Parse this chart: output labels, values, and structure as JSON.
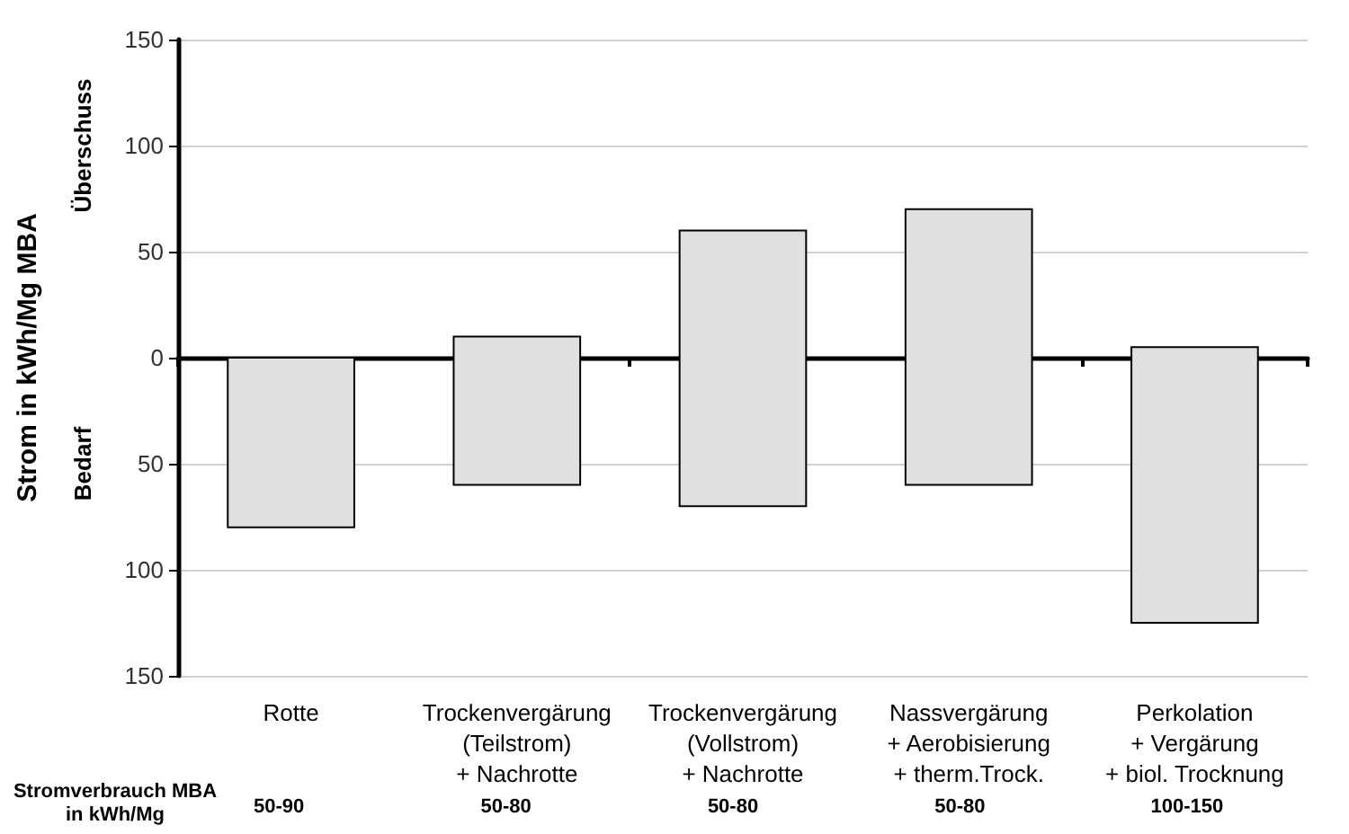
{
  "chart_data": {
    "type": "bar",
    "ylabel": "Strom in kWh/Mg MBA",
    "categories": [
      "Rotte",
      "Trockenvergärung\n(Teilstrom)\n+ Nachrotte",
      "Trockenvergärung\n(Vollstrom)\n+ Nachrotte",
      "Nassvergärung\n+ Aerobisierung\n+ therm.Trock.",
      "Perkolation\n+ Vergärung\n+ biol. Trocknung"
    ],
    "values": [
      80,
      70,
      130,
      130,
      130
    ],
    "base": [
      -80,
      -60,
      -70,
      -60,
      -125
    ],
    "color": "#e0e0e0",
    "ylim": [
      -150,
      150
    ],
    "yticks": [
      {
        "value": -150,
        "label": "150"
      },
      {
        "value": -100,
        "label": "100"
      },
      {
        "value": -50,
        "label": "50"
      },
      0,
      50,
      100,
      150
    ],
    "grid": "y",
    "annotations": [
      "Überschuss",
      "Bedarf",
      "Stromverbrauch MBA\nin kWh/Mg",
      "50-90",
      "50-80",
      "50-80",
      "50-80",
      "100-150"
    ]
  }
}
